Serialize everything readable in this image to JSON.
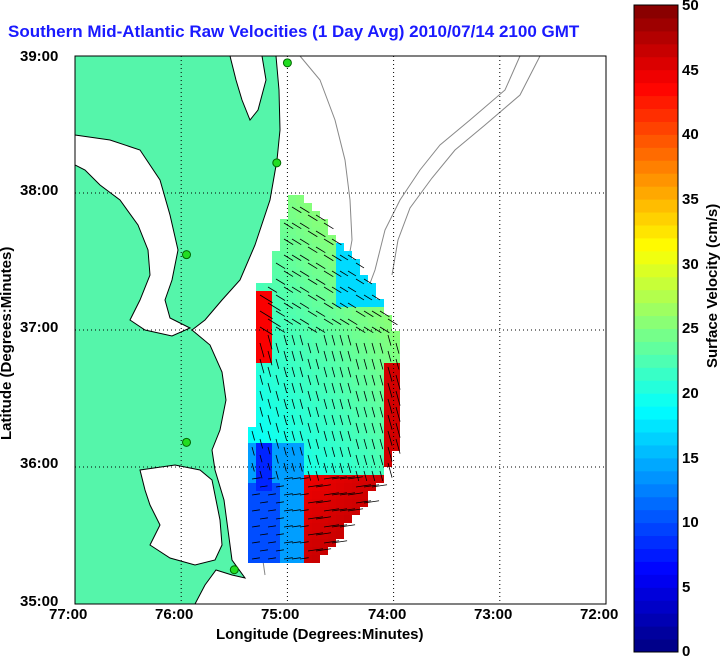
{
  "title": "Southern Mid-Atlantic Raw Velocities (1 Day Avg) 2010/07/14 2100 GMT",
  "x_axis": {
    "label": "Longitude (Degrees:Minutes)",
    "ticks": [
      "77:00",
      "76:00",
      "75:00",
      "74:00",
      "73:00",
      "72:00"
    ]
  },
  "y_axis": {
    "label": "Latitude (Degrees:Minutes)",
    "ticks": [
      "39:00",
      "38:00",
      "37:00",
      "36:00",
      "35:00"
    ]
  },
  "colorbar": {
    "label": "Surface Velocity (cm/s)",
    "ticks": [
      "50",
      "45",
      "40",
      "35",
      "30",
      "25",
      "20",
      "15",
      "10",
      "5",
      "0"
    ],
    "min": 0,
    "max": 50,
    "colormap": "jet"
  },
  "map": {
    "land_color": "#55f5aa",
    "water_color": "#ffffff",
    "grid": "dotted",
    "lon_range": [
      -77,
      -72
    ],
    "lat_range": [
      35,
      39
    ],
    "stations": [
      {
        "lon": -75.0,
        "lat": 38.95
      },
      {
        "lon": -75.1,
        "lat": 38.22
      },
      {
        "lon": -75.95,
        "lat": 37.55
      },
      {
        "lon": -75.95,
        "lat": 36.18
      },
      {
        "lon": -75.5,
        "lat": 35.25
      }
    ]
  }
}
